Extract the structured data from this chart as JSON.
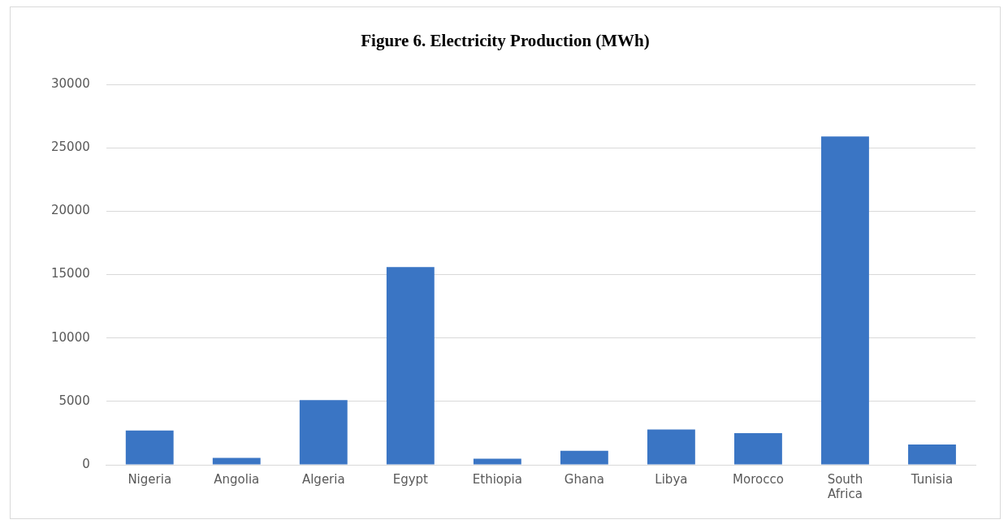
{
  "chart_data": {
    "type": "bar",
    "title": "Figure 6. Electricity Production (MWh)",
    "categories": [
      "Nigeria",
      "Angolia",
      "Algeria",
      "Egypt",
      "Ethiopia",
      "Ghana",
      "Libya",
      "Morocco",
      "South Africa",
      "Tunisia"
    ],
    "values": [
      2700,
      550,
      5100,
      15600,
      480,
      1100,
      2780,
      2500,
      25900,
      1600
    ],
    "color": "#3a75c4",
    "ylim": [
      0,
      30000
    ],
    "yticks": [
      0,
      5000,
      10000,
      15000,
      20000,
      25000,
      30000
    ],
    "grid": "y",
    "legend": false
  }
}
